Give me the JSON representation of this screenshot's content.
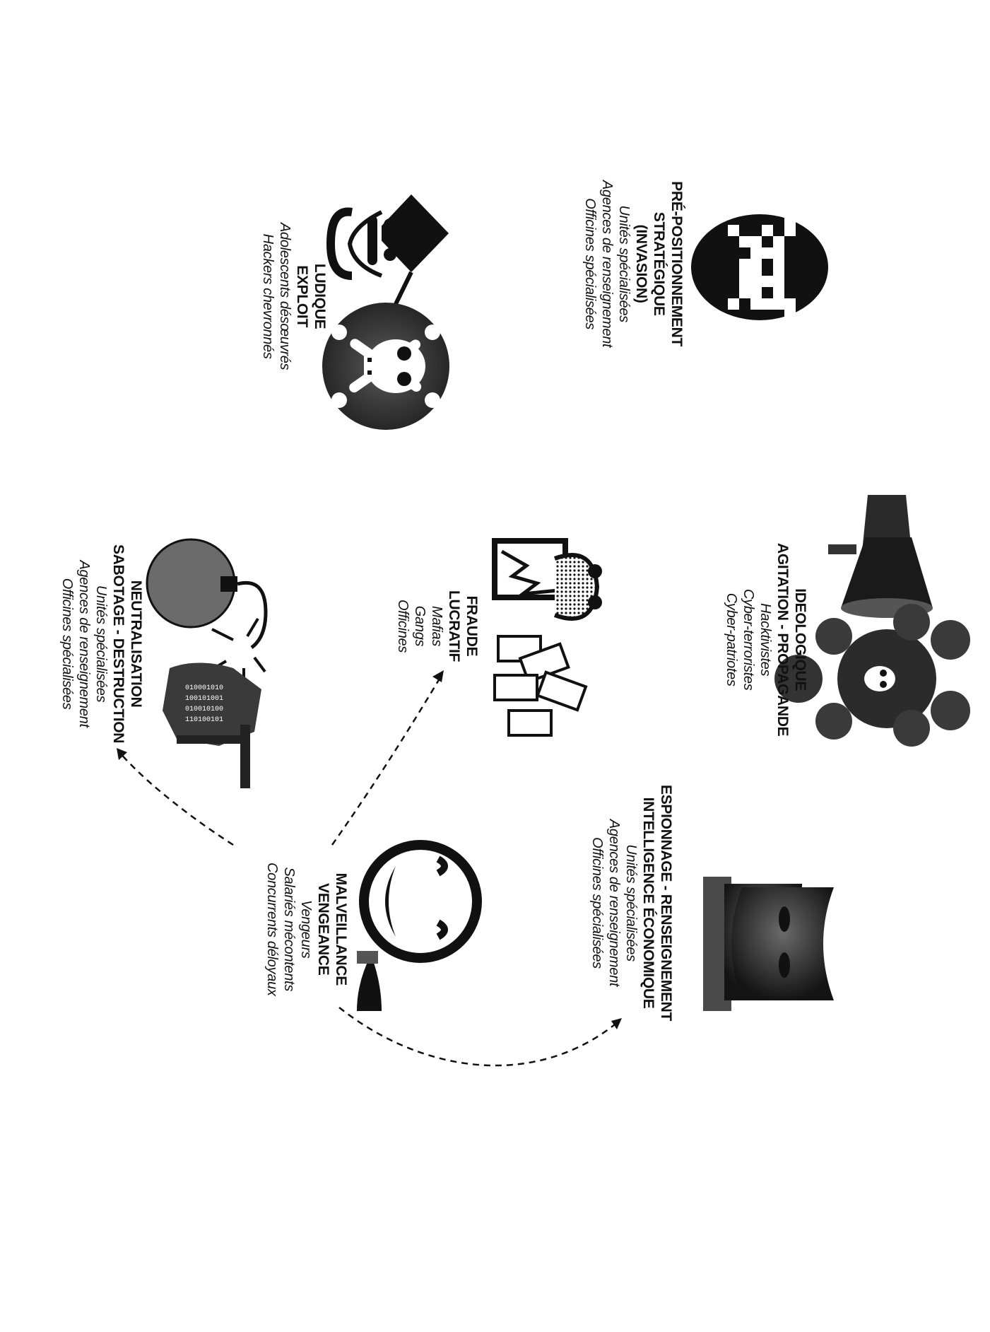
{
  "categories": [
    {
      "id": "prepositionnement",
      "title": [
        "PRÉ-POSITIONNEMENT",
        "STRATÉGIQUE",
        "(INVASION)"
      ],
      "actors": [
        "Unités spécialisées",
        "Agences de renseignement",
        "Officines spécialisées"
      ],
      "icon": "space-invader-icon"
    },
    {
      "id": "ludique",
      "title": [
        "LUDIQUE",
        "EXPLOIT"
      ],
      "actors": [
        "Adolescents désœuvrés",
        "Hackers chevronnés"
      ],
      "icons": [
        "graduate-hacker-icon",
        "skull-crossbones-icon"
      ]
    },
    {
      "id": "ideologique",
      "title": [
        "IDEOLOGIQUE",
        "AGITATION - PROPAGANDE"
      ],
      "actors": [
        "Hacktivistes",
        "Cyber-terroristes",
        "Cyber-patriotes"
      ],
      "icons": [
        "megaphone-icon",
        "skull-explosion-icon"
      ]
    },
    {
      "id": "fraude",
      "title": [
        "FRAUDE",
        "LUCRATIF"
      ],
      "actors": [
        "Mafias",
        "Gangs",
        "Officines"
      ],
      "icon": "money-thief-icon"
    },
    {
      "id": "neutralisation",
      "title": [
        "NEUTRALISATION",
        "SABOTAGE - DESTRUCTION"
      ],
      "actors": [
        "Unités spécialisées",
        "Agences de renseignement",
        "Officines spécialisées"
      ],
      "icons": [
        "bomb-icon",
        "binary-soldier-icon"
      ]
    },
    {
      "id": "espionnage",
      "title": [
        "ESPIONNAGE - RENSEIGNEMENT",
        "INTELLIGENCE ÉCONOMIQUE"
      ],
      "actors": [
        "Unités spécialisées",
        "Agences de renseignement",
        "Officines spécialisées"
      ],
      "icon": "spy-hat-icon"
    },
    {
      "id": "malveillance",
      "title": [
        "MALVEILLANCE",
        "VENGEANCE"
      ],
      "actors": [
        "Vengeurs",
        "Salariés mécontents",
        "Concurrents déloyaux"
      ],
      "icon": "grinning-knife-icon"
    }
  ],
  "arrows": [
    {
      "from": "malveillance",
      "to": "fraude"
    },
    {
      "from": "malveillance",
      "to": "neutralisation"
    },
    {
      "from": "malveillance",
      "to": "espionnage"
    }
  ]
}
